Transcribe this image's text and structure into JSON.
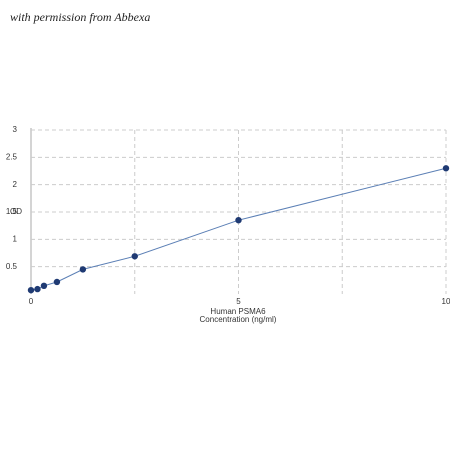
{
  "chart_data": {
    "type": "line",
    "annotation": "with permission from Abbexa",
    "xlabel": [
      "Human PSMA6",
      "Concentration (ng/ml)"
    ],
    "ylabel": "OD",
    "series": [
      {
        "x": [
          0,
          0.156,
          0.312,
          0.625,
          1.25,
          2.5,
          5,
          10
        ],
        "values": [
          0.07,
          0.09,
          0.15,
          0.22,
          0.45,
          0.69,
          1.35,
          2.3
        ],
        "color": "#1f3a73",
        "line_color": "#5b7fb5"
      }
    ],
    "xlim": [
      0,
      10
    ],
    "xticks": [
      0,
      5,
      10
    ],
    "xminor": [
      2.5,
      7.5
    ],
    "ylim": [
      0,
      3
    ],
    "yticks": [
      0.5,
      1,
      1.5,
      2,
      2.5,
      3
    ],
    "grid": true
  }
}
